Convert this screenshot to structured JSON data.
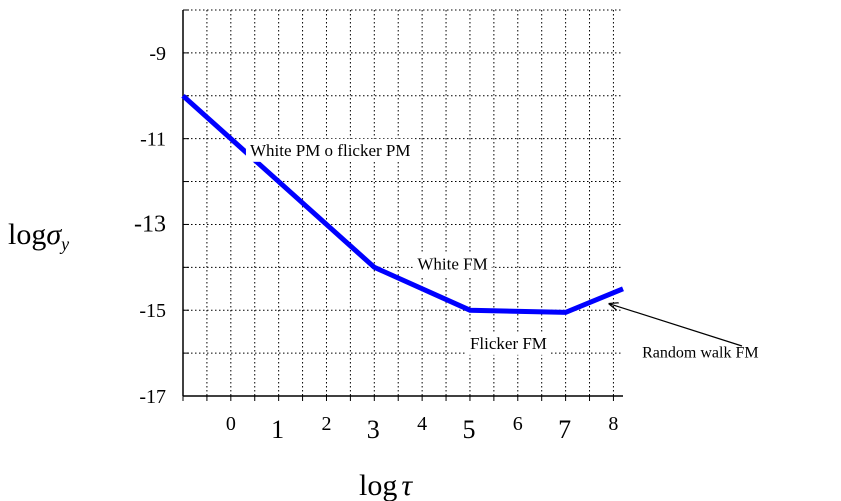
{
  "chart_data": {
    "type": "line",
    "title": "",
    "xlabel": "log τ",
    "ylabel": "log σy",
    "xlim": [
      -1,
      8.2
    ],
    "ylim": [
      -17,
      -8
    ],
    "grid": true,
    "x_ticks": [
      {
        "value": 0,
        "label": "0"
      },
      {
        "value": 1,
        "label": "1"
      },
      {
        "value": 2,
        "label": "2"
      },
      {
        "value": 3,
        "label": "3"
      },
      {
        "value": 4,
        "label": "4"
      },
      {
        "value": 5,
        "label": "5"
      },
      {
        "value": 6,
        "label": "6"
      },
      {
        "value": 7,
        "label": "7"
      },
      {
        "value": 8,
        "label": "8"
      }
    ],
    "y_ticks": [
      {
        "value": -9,
        "label": "-9"
      },
      {
        "value": -11,
        "label": "-11"
      },
      {
        "value": -13,
        "label": "-13"
      },
      {
        "value": -15,
        "label": "-15"
      },
      {
        "value": -17,
        "label": "-17"
      }
    ],
    "series": [
      {
        "color": "#0000ff",
        "points": [
          [
            -1,
            -10
          ],
          [
            3,
            -14
          ],
          [
            5,
            -15
          ],
          [
            7,
            -15.05
          ],
          [
            8.2,
            -14.5
          ]
        ]
      }
    ],
    "annotations": [
      {
        "text": "White PM o flicker PM",
        "x": 0.4,
        "y": -11.4
      },
      {
        "text": "White FM",
        "x": 3.9,
        "y": -14.05
      },
      {
        "text": "Flicker FM",
        "x": 5.0,
        "y": -15.9
      },
      {
        "text": "Random walk FM",
        "x": 8.6,
        "y": -16.1,
        "arrow_to": [
          8.0,
          -14.85
        ]
      }
    ],
    "ylabel_parts": {
      "prefix": "log",
      "symbol": "σ",
      "sub": "y"
    },
    "xlabel_parts": {
      "prefix": "log",
      "symbol": "τ"
    }
  }
}
